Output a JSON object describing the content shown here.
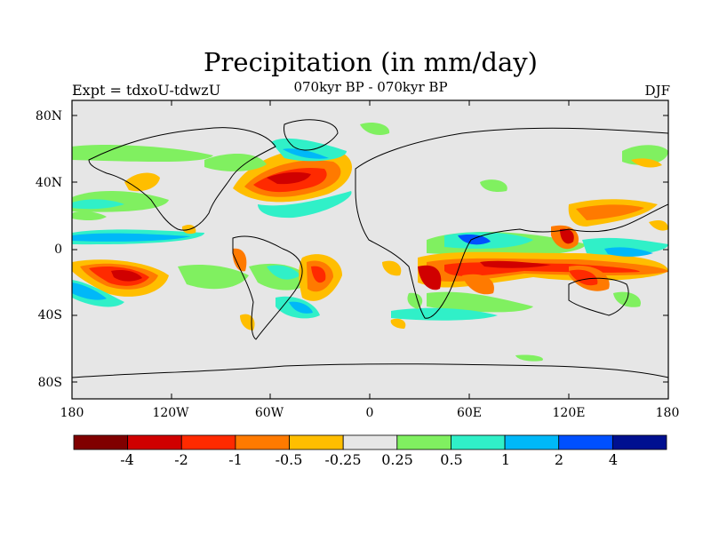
{
  "title": "Precipitation (in mm/day)",
  "subtitle": "070kyr BP - 070kyr BP",
  "left_string": "Expt = tdxoU-tdwzU",
  "right_string": "DJF",
  "map": {
    "projection": "cylindrical equidistant",
    "lat_range": [
      -90,
      90
    ],
    "lon_range": [
      -180,
      180
    ],
    "lat_ticks": [
      "80N",
      "40N",
      "0",
      "40S",
      "80S"
    ],
    "lon_ticks": [
      "180",
      "120W",
      "60W",
      "0",
      "60E",
      "120E",
      "180"
    ],
    "background_color": "#e6e6e6"
  },
  "colorbar": {
    "labels": [
      "-4",
      "-2",
      "-1",
      "-0.5",
      "-0.25",
      "0.25",
      "0.5",
      "1",
      "2",
      "4"
    ],
    "colors": [
      "#800000",
      "#d00000",
      "#ff2a00",
      "#ff7a00",
      "#ffbe00",
      "#e6e6e6",
      "#80f060",
      "#30f0c8",
      "#00b8f8",
      "#0050ff",
      "#001090"
    ]
  }
}
